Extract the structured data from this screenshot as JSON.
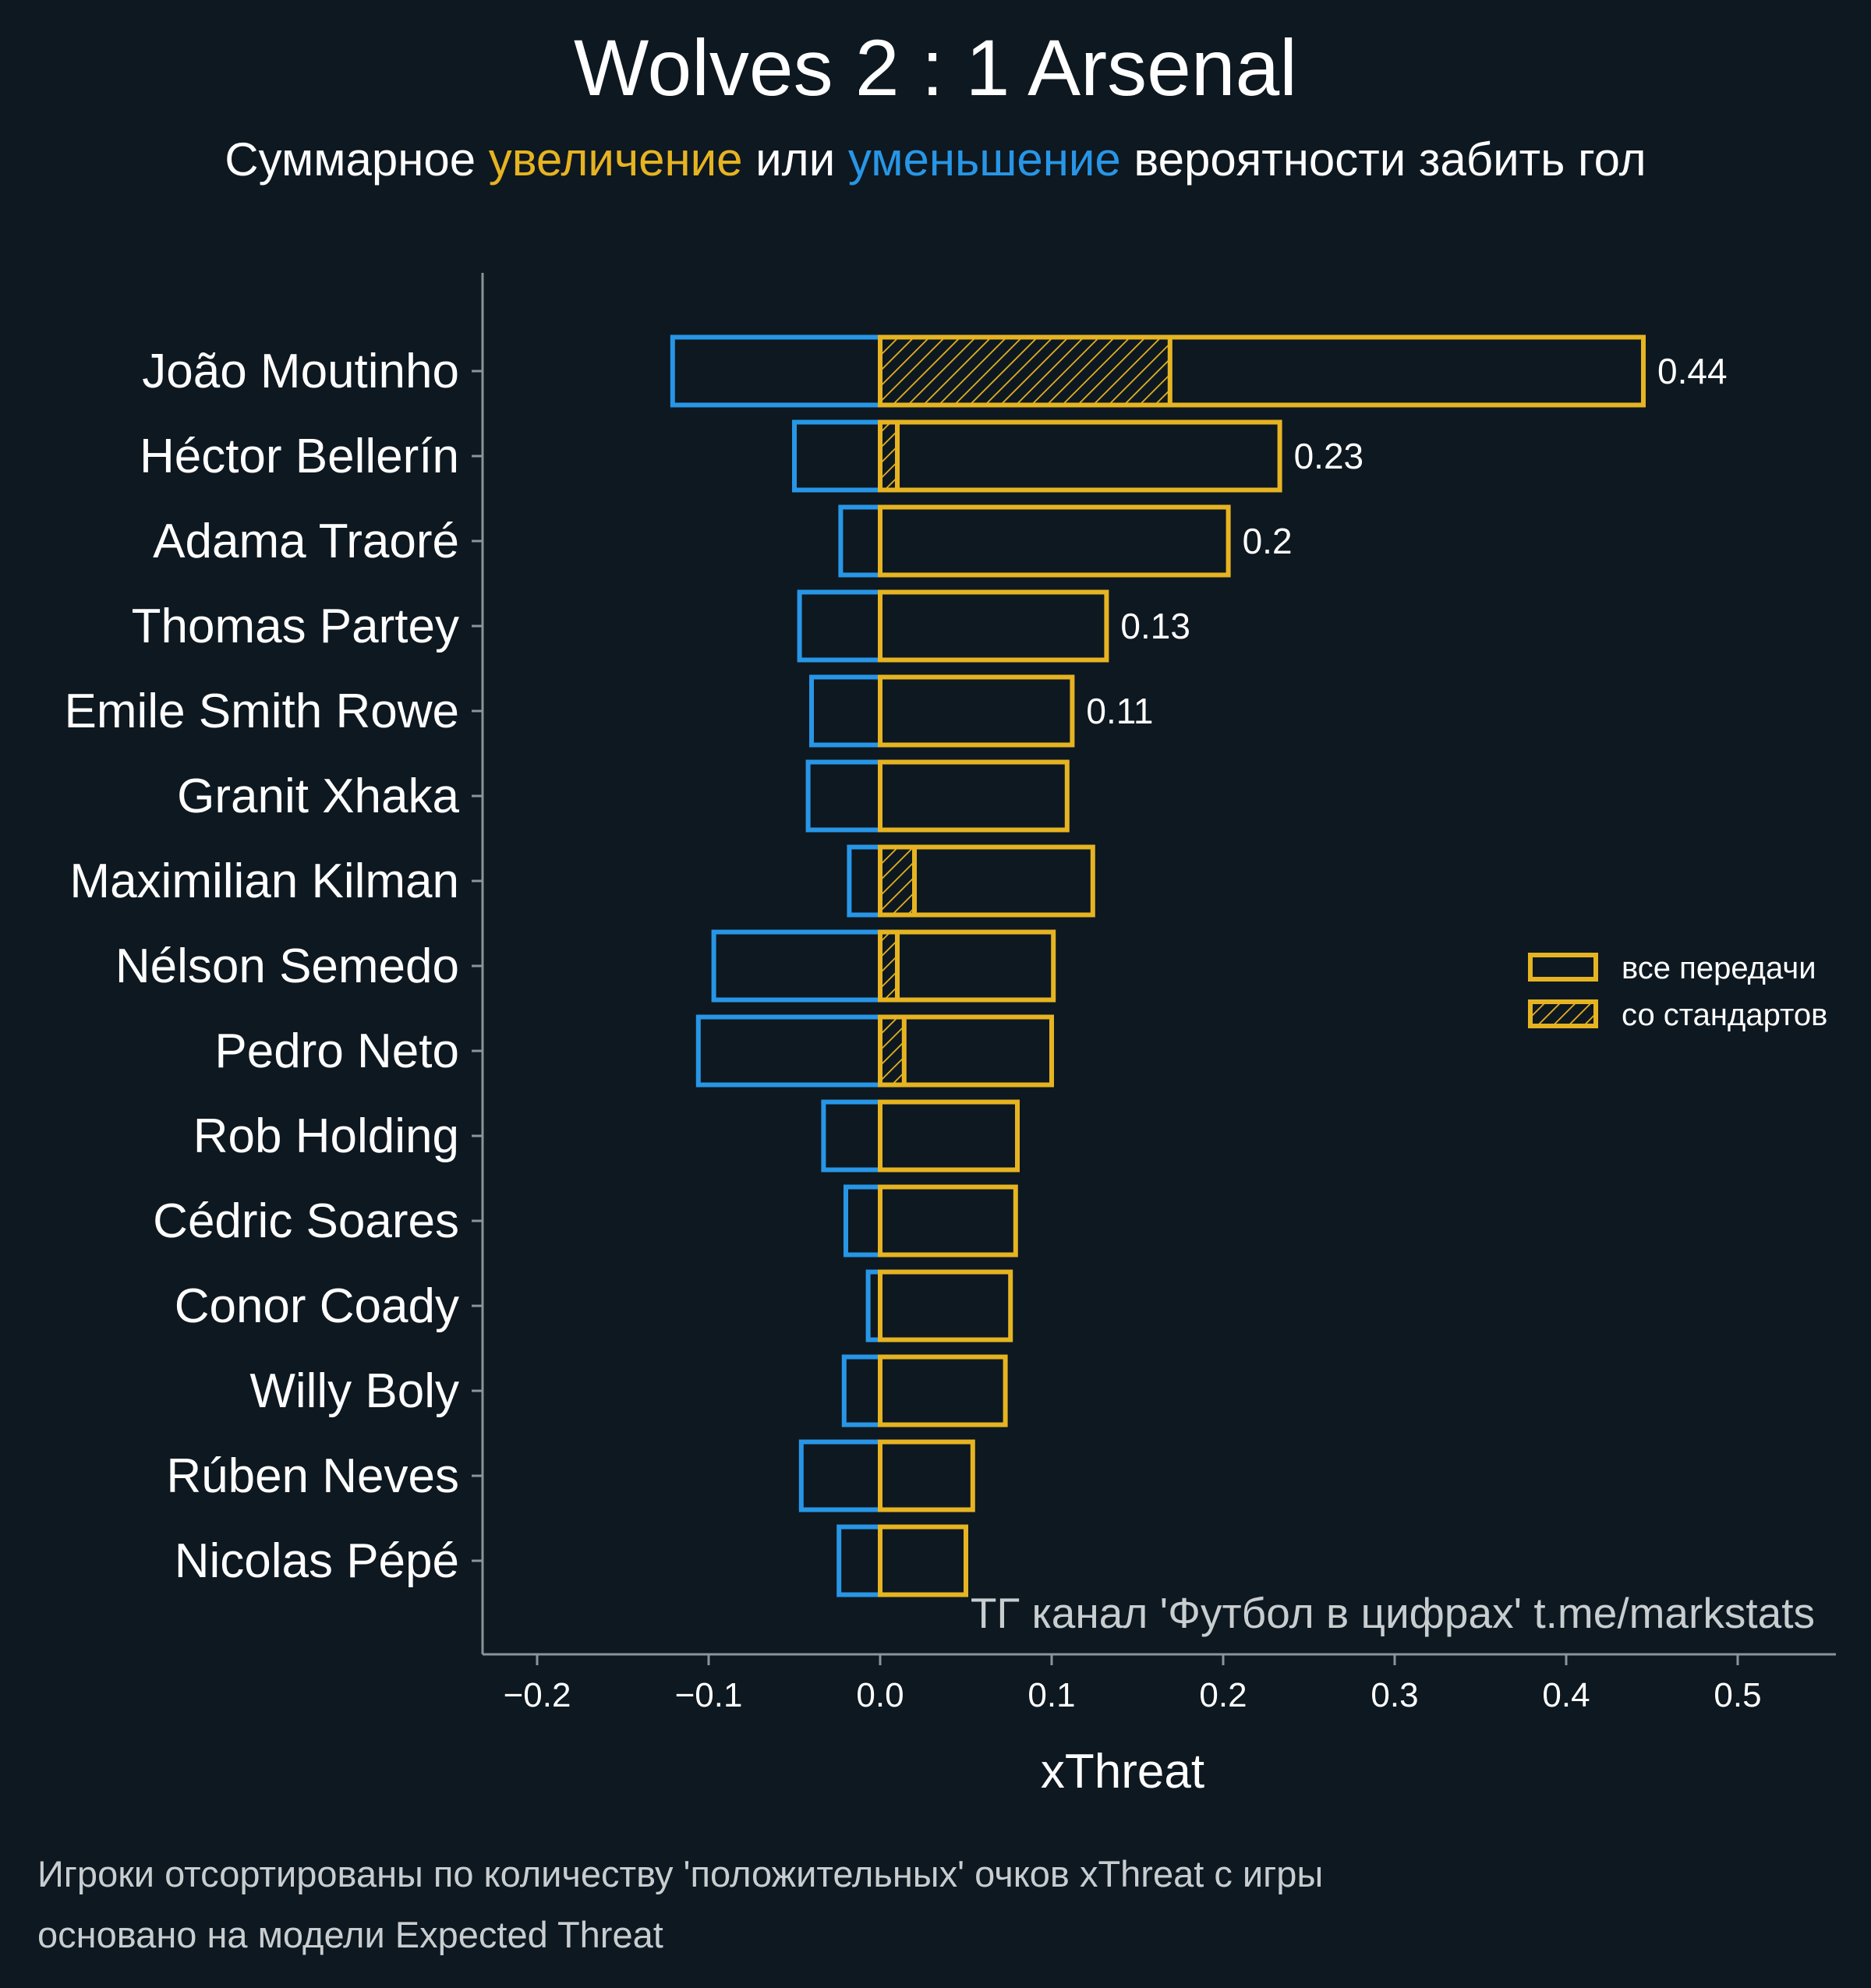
{
  "colors": {
    "background": "#0e1820",
    "positive": "#e6b422",
    "negative": "#2896e6",
    "axis": "#8a9599",
    "text": "#ffffff",
    "muted": "#c8cdd0"
  },
  "header": {
    "title": "Wolves 2 : 1 Arsenal",
    "subtitle_part1": "Суммарное ",
    "subtitle_increase": "увеличение",
    "subtitle_part2": " или ",
    "subtitle_decrease": "уменьшение",
    "subtitle_part3": " вероятности забить гол"
  },
  "watermark": "ТГ канал 'Футбол в цифрах'  t.me/markstats",
  "footer": {
    "line1": "Игроки отсортированы по количеству 'положительных' очков xThreat с игры",
    "line2": "основано на модели Expected Threat"
  },
  "legend": {
    "all_passes": "все передачи",
    "set_pieces": "со стандартов"
  },
  "chart_data": {
    "type": "bar",
    "orientation": "horizontal",
    "title": "Wolves 2 : 1 Arsenal",
    "xlabel": "xThreat",
    "ylabel": "",
    "xlim": [
      -0.235,
      0.556
    ],
    "xticks": [
      -0.2,
      -0.1,
      0.0,
      0.1,
      0.2,
      0.3,
      0.4,
      0.5
    ],
    "xtick_labels": [
      "−0.2",
      "−0.1",
      "0.0",
      "0.1",
      "0.2",
      "0.3",
      "0.4",
      "0.5"
    ],
    "grid": false,
    "legend_position": "right",
    "categories": [
      "João Moutinho",
      "Héctor Bellerín",
      "Adama Traoré",
      "Thomas Partey",
      "Emile Smith Rowe",
      "Granit Xhaka",
      "Maximilian Kilman",
      "Nélson Semedo",
      "Pedro Neto",
      "Rob Holding",
      "Cédric Soares",
      "Conor Coady",
      "Willy Boly",
      "Rúben Neves",
      "Nicolas Pépé"
    ],
    "series": [
      {
        "name": "positive",
        "values": [
          0.445,
          0.233,
          0.203,
          0.132,
          0.112,
          0.109,
          0.124,
          0.101,
          0.1,
          0.08,
          0.079,
          0.076,
          0.073,
          0.054,
          0.05
        ]
      },
      {
        "name": "negative",
        "values": [
          -0.121,
          -0.05,
          -0.023,
          -0.047,
          -0.04,
          -0.042,
          -0.018,
          -0.097,
          -0.106,
          -0.033,
          -0.02,
          -0.007,
          -0.021,
          -0.046,
          -0.024
        ]
      },
      {
        "name": "set pieces",
        "values": [
          0.169,
          0.01,
          0.0,
          0.0,
          0.0,
          0.0,
          0.02,
          0.01,
          0.014,
          0.0,
          0.0,
          0.0,
          0.0,
          0.0,
          0.0
        ]
      }
    ],
    "value_labels": [
      "0.44",
      "0.23",
      "0.2",
      "0.13",
      "0.11"
    ]
  }
}
